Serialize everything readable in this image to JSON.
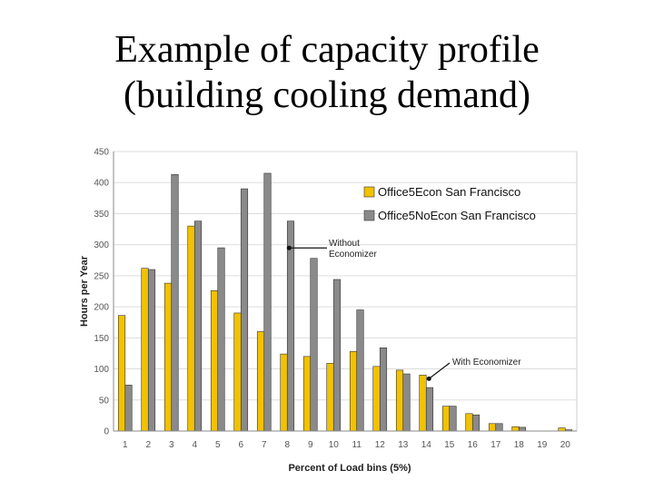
{
  "slide": {
    "title_line1": "Example of capacity profile",
    "title_line2": "(building cooling demand)"
  },
  "chart_data": {
    "type": "bar",
    "xlabel": "Percent of Load bins (5%)",
    "ylabel": "Hours per Year",
    "ylim": [
      0,
      450
    ],
    "yticks": [
      0,
      50,
      100,
      150,
      200,
      250,
      300,
      350,
      400,
      450
    ],
    "categories": [
      "1",
      "2",
      "3",
      "4",
      "5",
      "6",
      "7",
      "8",
      "9",
      "10",
      "11",
      "12",
      "13",
      "14",
      "15",
      "16",
      "17",
      "18",
      "19",
      "20"
    ],
    "grid": true,
    "legend_position": "top-right",
    "series": [
      {
        "name": "Office5Econ San Francisco",
        "color": "#f2c200",
        "values": [
          186,
          262,
          238,
          330,
          226,
          190,
          160,
          124,
          120,
          109,
          128,
          104,
          98,
          90,
          40,
          28,
          12,
          7,
          0,
          5
        ]
      },
      {
        "name": "Office5NoEcon San Francisco",
        "color": "#8a8a8a",
        "values": [
          74,
          260,
          413,
          338,
          295,
          390,
          415,
          338,
          278,
          244,
          195,
          134,
          92,
          70,
          40,
          26,
          12,
          6,
          0,
          2
        ]
      }
    ],
    "annotations": [
      {
        "text_lines": [
          "Without",
          "Economizer"
        ],
        "category": "8",
        "value": 305
      },
      {
        "text_lines": [
          "With Economizer"
        ],
        "category": "14",
        "value": 90
      }
    ]
  }
}
